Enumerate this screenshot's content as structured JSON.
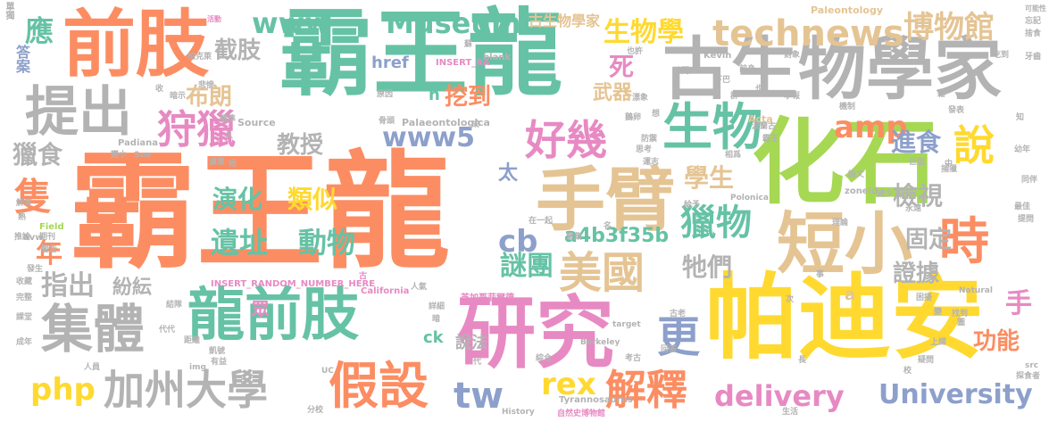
{
  "palette": {
    "orange": "#fc8d62",
    "green": "#66c2a5",
    "purple": "#8da0cb",
    "pink": "#e78ac3",
    "lime": "#a6d854",
    "yellow": "#ffd92f",
    "tan": "#e5c494",
    "gray": "#b3b3b3"
  },
  "words": [
    {
      "text": "霸王龍",
      "color": "orange"
    },
    {
      "text": "霸王龍",
      "color": "green"
    },
    {
      "text": "前肢",
      "color": "orange"
    },
    {
      "text": "古生物學家",
      "color": "gray"
    },
    {
      "text": "化石",
      "color": "lime"
    },
    {
      "text": "帕迪安",
      "color": "yellow"
    },
    {
      "text": "研究",
      "color": "pink"
    },
    {
      "text": "龍前肢",
      "color": "green"
    },
    {
      "text": "手臂",
      "color": "tan"
    },
    {
      "text": "短小",
      "color": "tan"
    },
    {
      "text": "集體",
      "color": "gray"
    },
    {
      "text": "提出",
      "color": "gray"
    },
    {
      "text": "加州大學",
      "color": "gray"
    },
    {
      "text": "假設",
      "color": "orange"
    },
    {
      "text": "生物",
      "color": "green"
    },
    {
      "text": "好幾",
      "color": "pink"
    },
    {
      "text": "狩獵",
      "color": "pink"
    },
    {
      "text": "www",
      "color": "green"
    },
    {
      "text": "Museum",
      "color": "green"
    },
    {
      "text": "technews",
      "color": "tan"
    },
    {
      "text": "博物館",
      "color": "tan"
    },
    {
      "text": "www5",
      "color": "purple"
    },
    {
      "text": "美國",
      "color": "tan"
    },
    {
      "text": "獵物",
      "color": "green"
    },
    {
      "text": "說",
      "color": "yellow"
    },
    {
      "text": "時",
      "color": "orange"
    },
    {
      "text": "隻",
      "color": "orange"
    },
    {
      "text": "解釋",
      "color": "orange"
    },
    {
      "text": "delivery",
      "color": "pink"
    },
    {
      "text": "University",
      "color": "purple"
    },
    {
      "text": "rex",
      "color": "yellow"
    },
    {
      "text": "php",
      "color": "yellow"
    },
    {
      "text": "tw",
      "color": "purple"
    },
    {
      "text": "cb",
      "color": "purple"
    },
    {
      "text": "更",
      "color": "purple"
    },
    {
      "text": "遺址",
      "color": "green"
    },
    {
      "text": "動物",
      "color": "green"
    },
    {
      "text": "謎團",
      "color": "green"
    },
    {
      "text": "演化",
      "color": "green"
    },
    {
      "text": "類似",
      "color": "yellow"
    },
    {
      "text": "教授",
      "color": "gray"
    },
    {
      "text": "截肢",
      "color": "gray"
    },
    {
      "text": "挖到",
      "color": "orange"
    },
    {
      "text": "amp",
      "color": "orange"
    },
    {
      "text": "進食",
      "color": "purple"
    },
    {
      "text": "生物學",
      "color": "yellow"
    },
    {
      "text": "古生物學家",
      "color": "tan"
    },
    {
      "text": "布朗",
      "color": "tan"
    },
    {
      "text": "死",
      "color": "pink"
    },
    {
      "text": "武器",
      "color": "tan"
    },
    {
      "text": "學生",
      "color": "tan"
    },
    {
      "text": "檢視",
      "color": "gray"
    },
    {
      "text": "固定",
      "color": "gray"
    },
    {
      "text": "證據",
      "color": "gray"
    },
    {
      "text": "牠們",
      "color": "gray"
    },
    {
      "text": "a4b3f35b",
      "color": "green"
    },
    {
      "text": "指出",
      "color": "gray"
    },
    {
      "text": "紛紜",
      "color": "gray"
    },
    {
      "text": "功能",
      "color": "orange"
    },
    {
      "text": "手",
      "color": "pink"
    },
    {
      "text": "應",
      "color": "green"
    },
    {
      "text": "獵食",
      "color": "gray"
    },
    {
      "text": "年",
      "color": "orange"
    },
    {
      "text": "href",
      "color": "purple"
    },
    {
      "text": "n",
      "color": "green"
    },
    {
      "text": "太",
      "color": "purple"
    },
    {
      "text": "說法",
      "color": "gray"
    },
    {
      "text": "ck",
      "color": "green"
    },
    {
      "text": "眾",
      "color": "pink"
    },
    {
      "text": "a",
      "color": "tan"
    },
    {
      "text": "答案",
      "color": "purple"
    },
    {
      "text": "單獨",
      "color": "gray"
    },
    {
      "text": "Paleontology",
      "color": "tan"
    },
    {
      "text": "可能性",
      "color": "gray"
    },
    {
      "text": "捨食",
      "color": "gray"
    },
    {
      "text": "牙齒",
      "color": "gray"
    },
    {
      "text": "_blank",
      "color": "gray"
    },
    {
      "text": "INSERT_RA",
      "color": "pink"
    },
    {
      "text": "柏克萊",
      "color": "gray"
    },
    {
      "text": "活動",
      "color": "pink"
    },
    {
      "text": "Kevin",
      "color": "gray"
    },
    {
      "text": "前身",
      "color": "gray"
    },
    {
      "text": "對象",
      "color": "gray"
    },
    {
      "text": "吃到",
      "color": "gray"
    },
    {
      "text": "論文",
      "color": "gray"
    },
    {
      "text": "Source",
      "color": "gray"
    },
    {
      "text": "Palaeontologica",
      "color": "gray"
    },
    {
      "text": "Acta",
      "color": "tan"
    },
    {
      "text": "原因",
      "color": "gray"
    },
    {
      "text": "Padiana",
      "color": "gray"
    },
    {
      "text": "Sue",
      "color": "gray"
    },
    {
      "text": "標準",
      "color": "gray"
    },
    {
      "text": "濾意",
      "color": "gray"
    },
    {
      "text": "漂象",
      "color": "gray"
    },
    {
      "text": "防禦",
      "color": "gray"
    },
    {
      "text": "思考",
      "color": "gray"
    },
    {
      "text": "運志",
      "color": "gray"
    },
    {
      "text": "巨型",
      "color": "gray"
    },
    {
      "text": "捕獵",
      "color": "gray"
    },
    {
      "text": "zoneid",
      "color": "gray"
    },
    {
      "text": "減少",
      "color": "gray"
    },
    {
      "text": "永遠",
      "color": "gray"
    },
    {
      "text": "Field",
      "color": "lime"
    },
    {
      "text": "期刊",
      "color": "gray"
    },
    {
      "text": "avw",
      "color": "gray"
    },
    {
      "text": "推論",
      "color": "gray"
    },
    {
      "text": "警告",
      "color": "gray"
    },
    {
      "text": "發生",
      "color": "gray"
    },
    {
      "text": "Polonica",
      "color": "gray"
    },
    {
      "text": "在一起",
      "color": "gray"
    },
    {
      "text": "聚集",
      "color": "gray"
    },
    {
      "text": "給予",
      "color": "gray"
    },
    {
      "text": "理論",
      "color": "gray"
    },
    {
      "text": "提問",
      "color": "gray"
    },
    {
      "text": "最佳",
      "color": "gray"
    },
    {
      "text": "California",
      "color": "pink"
    },
    {
      "text": "芝加哥菲爾德",
      "color": "pink"
    },
    {
      "text": "INSERT_RANDOM_NUMBER_HERE",
      "color": "pink"
    },
    {
      "text": "人氣",
      "color": "gray"
    },
    {
      "text": "詳細",
      "color": "gray"
    },
    {
      "text": "結隊",
      "color": "gray"
    },
    {
      "text": "代代",
      "color": "gray"
    },
    {
      "text": "距離",
      "color": "gray"
    },
    {
      "text": "凱號",
      "color": "gray"
    },
    {
      "text": "有益",
      "color": "gray"
    },
    {
      "text": "img",
      "color": "gray"
    },
    {
      "text": "人員",
      "color": "gray"
    },
    {
      "text": "課堂",
      "color": "gray"
    },
    {
      "text": "成年",
      "color": "gray"
    },
    {
      "text": "收藏",
      "color": "gray"
    },
    {
      "text": "完整",
      "color": "gray"
    },
    {
      "text": "UC",
      "color": "gray"
    },
    {
      "text": "Berkeley",
      "color": "gray"
    },
    {
      "text": "Tyrannosaurus",
      "color": "gray"
    },
    {
      "text": "History",
      "color": "gray"
    },
    {
      "text": "自然史博物館",
      "color": "pink"
    },
    {
      "text": "分校",
      "color": "gray"
    },
    {
      "text": "target",
      "color": "gray"
    },
    {
      "text": "考古",
      "color": "gray"
    },
    {
      "text": "回答",
      "color": "gray"
    },
    {
      "text": "綜合",
      "color": "gray"
    },
    {
      "text": "古老",
      "color": "gray"
    },
    {
      "text": "Natural",
      "color": "gray"
    },
    {
      "text": "困擾",
      "color": "gray"
    },
    {
      "text": "找到",
      "color": "gray"
    },
    {
      "text": "上課",
      "color": "gray"
    },
    {
      "text": "疑問",
      "color": "gray"
    },
    {
      "text": "src",
      "color": "gray"
    },
    {
      "text": "探食者",
      "color": "gray"
    },
    {
      "text": "生活",
      "color": "gray"
    },
    {
      "text": "也許",
      "color": "gray"
    },
    {
      "text": "暗示",
      "color": "gray"
    },
    {
      "text": "悲慘",
      "color": "gray"
    },
    {
      "text": "骨頭",
      "color": "gray"
    },
    {
      "text": "機制",
      "color": "gray"
    },
    {
      "text": "發表",
      "color": "gray"
    },
    {
      "text": "學報",
      "color": "gray"
    },
    {
      "text": "相爲",
      "color": "gray"
    },
    {
      "text": "霸王",
      "color": "gray"
    },
    {
      "text": "波蘭古",
      "color": "gray"
    },
    {
      "text": "幼年",
      "color": "gray"
    },
    {
      "text": "同伴",
      "color": "gray"
    },
    {
      "text": "變小",
      "color": "gray"
    },
    {
      "text": "解答",
      "color": "gray"
    },
    {
      "text": "時間",
      "color": "gray"
    },
    {
      "text": "下巴",
      "color": "gray"
    },
    {
      "text": "鵝卵",
      "color": "gray"
    },
    {
      "text": "也",
      "color": "gray"
    },
    {
      "text": "鬆",
      "color": "gray"
    },
    {
      "text": "群",
      "color": "gray"
    },
    {
      "text": "成",
      "color": "gray"
    },
    {
      "text": "代",
      "color": "gray"
    },
    {
      "text": "事",
      "color": "gray"
    },
    {
      "text": "長",
      "color": "gray"
    },
    {
      "text": "變",
      "color": "gray"
    },
    {
      "text": "圖",
      "color": "gray"
    },
    {
      "text": "次",
      "color": "gray"
    },
    {
      "text": "中",
      "color": "gray"
    },
    {
      "text": "知",
      "color": "gray"
    },
    {
      "text": "收",
      "color": "gray"
    },
    {
      "text": "久",
      "color": "gray"
    },
    {
      "text": "短",
      "color": "gray"
    },
    {
      "text": "蘇",
      "color": "gray"
    },
    {
      "text": "熟",
      "color": "gray"
    },
    {
      "text": "校",
      "color": "gray"
    },
    {
      "text": "暗",
      "color": "gray"
    },
    {
      "text": "忘記",
      "color": "gray"
    },
    {
      "text": "想",
      "color": "gray"
    },
    {
      "text": "名",
      "color": "gray"
    },
    {
      "text": "古",
      "color": "pink"
    }
  ]
}
